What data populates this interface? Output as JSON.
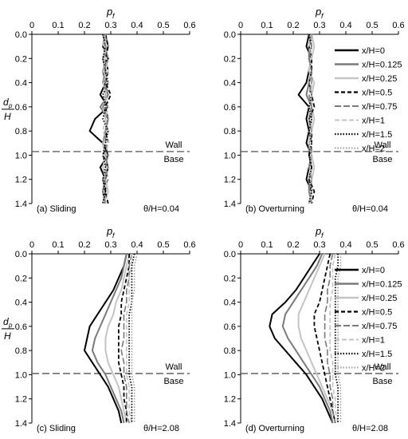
{
  "figure": {
    "y_axis_label": "d_p / H",
    "x_axis_label": "p_f"
  },
  "chart_data": [
    {
      "type": "line",
      "panel_label": "(a) Sliding",
      "theta_label": "θ/H=0.04",
      "xlabel": "p_f",
      "ylabel": "d_p/H",
      "xlim": [
        0,
        0.6
      ],
      "ylim": [
        0,
        1.4
      ],
      "y_inverted": true,
      "x_ticks": [
        0,
        0.1,
        0.2,
        0.3,
        0.4,
        0.5,
        0.6
      ],
      "y_ticks": [
        0.0,
        0.2,
        0.4,
        0.6,
        0.8,
        1.0,
        1.2,
        1.4
      ],
      "show_legend": false,
      "wall_line": {
        "y": 0.97,
        "above_label": "Wall",
        "below_label": "Base"
      },
      "depths": [
        0,
        0.1,
        0.2,
        0.3,
        0.4,
        0.5,
        0.6,
        0.7,
        0.8,
        0.9,
        1.0,
        1.1,
        1.2,
        1.3,
        1.4
      ],
      "series": [
        {
          "name": "x/H=0",
          "style": "solid-black",
          "values": [
            0.28,
            0.27,
            0.29,
            0.27,
            0.28,
            0.26,
            0.29,
            0.24,
            0.22,
            0.27,
            0.29,
            0.26,
            0.28,
            0.27,
            0.28
          ]
        },
        {
          "name": "x/H=0.125",
          "style": "solid-darkgray",
          "values": [
            0.28,
            0.29,
            0.27,
            0.28,
            0.27,
            0.29,
            0.26,
            0.29,
            0.28,
            0.27,
            0.28,
            0.29,
            0.27,
            0.28,
            0.27
          ]
        },
        {
          "name": "x/H=0.25",
          "style": "solid-lightgray",
          "values": [
            0.27,
            0.28,
            0.28,
            0.27,
            0.29,
            0.28,
            0.27,
            0.28,
            0.29,
            0.27,
            0.28,
            0.27,
            0.28,
            0.29,
            0.27
          ]
        },
        {
          "name": "x/H=0.5",
          "style": "dash-black",
          "values": [
            0.28,
            0.29,
            0.28,
            0.29,
            0.28,
            0.3,
            0.28,
            0.29,
            0.28,
            0.29,
            0.27,
            0.29,
            0.28,
            0.28,
            0.29
          ]
        },
        {
          "name": "x/H=0.75",
          "style": "dash-darkgray",
          "values": [
            0.27,
            0.28,
            0.29,
            0.28,
            0.28,
            0.29,
            0.27,
            0.29,
            0.28,
            0.28,
            0.29,
            0.28,
            0.29,
            0.27,
            0.28
          ]
        },
        {
          "name": "x/H=1",
          "style": "dash-lightgray",
          "values": [
            0.28,
            0.27,
            0.28,
            0.29,
            0.27,
            0.28,
            0.29,
            0.28,
            0.27,
            0.29,
            0.28,
            0.27,
            0.28,
            0.29,
            0.28
          ]
        },
        {
          "name": "x/H=1.5",
          "style": "dot-black",
          "values": [
            0.27,
            0.28,
            0.27,
            0.28,
            0.29,
            0.27,
            0.28,
            0.27,
            0.29,
            0.28,
            0.27,
            0.28,
            0.27,
            0.28,
            0.27
          ]
        },
        {
          "name": "x/H=2",
          "style": "dot-gray",
          "values": [
            0.28,
            0.28,
            0.29,
            0.27,
            0.28,
            0.28,
            0.28,
            0.29,
            0.28,
            0.27,
            0.28,
            0.29,
            0.28,
            0.27,
            0.28
          ]
        }
      ]
    },
    {
      "type": "line",
      "panel_label": "(b) Overturning",
      "theta_label": "θ/H=0.04",
      "xlabel": "p_f",
      "ylabel": "",
      "xlim": [
        0,
        0.6
      ],
      "ylim": [
        0,
        1.4
      ],
      "y_inverted": true,
      "x_ticks": [
        0,
        0.1,
        0.2,
        0.3,
        0.4,
        0.5,
        0.6
      ],
      "y_ticks": [
        0.0,
        0.2,
        0.4,
        0.6,
        0.8,
        1.0,
        1.2,
        1.4
      ],
      "show_legend": true,
      "wall_line": {
        "y": 0.97,
        "above_label": "Wall",
        "below_label": "Base"
      },
      "depths": [
        0,
        0.1,
        0.2,
        0.3,
        0.4,
        0.5,
        0.6,
        0.7,
        0.8,
        0.9,
        1.0,
        1.1,
        1.2,
        1.3,
        1.4
      ],
      "series": [
        {
          "name": "x/H=0",
          "style": "solid-black",
          "values": [
            0.26,
            0.25,
            0.27,
            0.26,
            0.25,
            0.22,
            0.26,
            0.25,
            0.26,
            0.25,
            0.27,
            0.26,
            0.25,
            0.27,
            0.26
          ]
        },
        {
          "name": "x/H=0.125",
          "style": "solid-darkgray",
          "values": [
            0.27,
            0.26,
            0.26,
            0.27,
            0.26,
            0.25,
            0.27,
            0.26,
            0.27,
            0.26,
            0.26,
            0.27,
            0.26,
            0.26,
            0.27
          ]
        },
        {
          "name": "x/H=0.25",
          "style": "solid-lightgray",
          "values": [
            0.27,
            0.28,
            0.27,
            0.26,
            0.28,
            0.27,
            0.27,
            0.28,
            0.27,
            0.26,
            0.27,
            0.28,
            0.27,
            0.27,
            0.26
          ]
        },
        {
          "name": "x/H=0.5",
          "style": "dash-black",
          "values": [
            0.27,
            0.26,
            0.27,
            0.27,
            0.26,
            0.27,
            0.28,
            0.26,
            0.27,
            0.27,
            0.26,
            0.27,
            0.26,
            0.28,
            0.27
          ]
        },
        {
          "name": "x/H=0.75",
          "style": "dash-darkgray",
          "values": [
            0.26,
            0.27,
            0.26,
            0.27,
            0.27,
            0.26,
            0.27,
            0.27,
            0.26,
            0.27,
            0.27,
            0.26,
            0.27,
            0.26,
            0.27
          ]
        },
        {
          "name": "x/H=1",
          "style": "dash-lightgray",
          "values": [
            0.27,
            0.26,
            0.27,
            0.26,
            0.27,
            0.27,
            0.26,
            0.27,
            0.27,
            0.26,
            0.27,
            0.27,
            0.26,
            0.27,
            0.26
          ]
        },
        {
          "name": "x/H=1.5",
          "style": "dot-black",
          "values": [
            0.26,
            0.27,
            0.26,
            0.27,
            0.26,
            0.27,
            0.26,
            0.27,
            0.26,
            0.27,
            0.26,
            0.27,
            0.26,
            0.27,
            0.26
          ]
        },
        {
          "name": "x/H=2",
          "style": "dot-gray",
          "values": [
            0.27,
            0.27,
            0.26,
            0.27,
            0.26,
            0.27,
            0.27,
            0.26,
            0.27,
            0.26,
            0.27,
            0.26,
            0.27,
            0.26,
            0.27
          ]
        }
      ]
    },
    {
      "type": "line",
      "panel_label": "(c) Sliding",
      "theta_label": "θ/H=2.08",
      "xlabel": "p_f",
      "ylabel": "d_p/H",
      "xlim": [
        0,
        0.6
      ],
      "ylim": [
        0,
        1.4
      ],
      "y_inverted": true,
      "x_ticks": [
        0,
        0.1,
        0.2,
        0.3,
        0.4,
        0.5,
        0.6
      ],
      "y_ticks": [
        0.0,
        0.2,
        0.4,
        0.6,
        0.8,
        1.0,
        1.2,
        1.4
      ],
      "show_legend": false,
      "wall_line": {
        "y": 0.99,
        "above_label": "Wall",
        "below_label": "Base"
      },
      "depths": [
        0,
        0.1,
        0.2,
        0.3,
        0.4,
        0.5,
        0.6,
        0.7,
        0.8,
        0.9,
        1.0,
        1.1,
        1.2,
        1.3,
        1.4
      ],
      "series": [
        {
          "name": "x/H=0",
          "style": "solid-black",
          "values": [
            0.36,
            0.35,
            0.33,
            0.31,
            0.28,
            0.25,
            0.22,
            0.21,
            0.2,
            0.23,
            0.26,
            0.29,
            0.31,
            0.33,
            0.34
          ]
        },
        {
          "name": "x/H=0.125",
          "style": "solid-darkgray",
          "values": [
            0.36,
            0.35,
            0.34,
            0.32,
            0.3,
            0.28,
            0.26,
            0.24,
            0.23,
            0.25,
            0.28,
            0.3,
            0.32,
            0.34,
            0.35
          ]
        },
        {
          "name": "x/H=0.25",
          "style": "solid-lightgray",
          "values": [
            0.37,
            0.36,
            0.35,
            0.34,
            0.32,
            0.31,
            0.29,
            0.28,
            0.28,
            0.29,
            0.31,
            0.33,
            0.34,
            0.35,
            0.36
          ]
        },
        {
          "name": "x/H=0.5",
          "style": "dash-black",
          "values": [
            0.37,
            0.37,
            0.36,
            0.35,
            0.34,
            0.34,
            0.33,
            0.33,
            0.33,
            0.33,
            0.34,
            0.35,
            0.35,
            0.36,
            0.36
          ]
        },
        {
          "name": "x/H=0.75",
          "style": "dash-darkgray",
          "values": [
            0.38,
            0.37,
            0.37,
            0.36,
            0.36,
            0.35,
            0.35,
            0.35,
            0.34,
            0.35,
            0.35,
            0.36,
            0.36,
            0.36,
            0.37
          ]
        },
        {
          "name": "x/H=1",
          "style": "dash-lightgray",
          "values": [
            0.38,
            0.38,
            0.37,
            0.37,
            0.37,
            0.36,
            0.36,
            0.36,
            0.36,
            0.36,
            0.36,
            0.37,
            0.37,
            0.37,
            0.38
          ]
        },
        {
          "name": "x/H=1.5",
          "style": "dot-black",
          "values": [
            0.39,
            0.38,
            0.38,
            0.38,
            0.38,
            0.37,
            0.37,
            0.37,
            0.37,
            0.37,
            0.37,
            0.38,
            0.38,
            0.38,
            0.38
          ]
        },
        {
          "name": "x/H=2",
          "style": "dot-gray",
          "values": [
            0.4,
            0.39,
            0.39,
            0.39,
            0.38,
            0.38,
            0.38,
            0.38,
            0.38,
            0.38,
            0.38,
            0.39,
            0.39,
            0.39,
            0.39
          ]
        }
      ]
    },
    {
      "type": "line",
      "panel_label": "(d) Overturning",
      "theta_label": "θ/H=2.08",
      "xlabel": "p_f",
      "ylabel": "",
      "xlim": [
        0,
        0.6
      ],
      "ylim": [
        0,
        1.4
      ],
      "y_inverted": true,
      "x_ticks": [
        0,
        0.1,
        0.2,
        0.3,
        0.4,
        0.5,
        0.6
      ],
      "y_ticks": [
        0.0,
        0.2,
        0.4,
        0.6,
        0.8,
        1.0,
        1.2,
        1.4
      ],
      "show_legend": true,
      "wall_line": {
        "y": 0.99,
        "above_label": "Wall",
        "below_label": "Base"
      },
      "depths": [
        0,
        0.1,
        0.2,
        0.3,
        0.4,
        0.5,
        0.6,
        0.7,
        0.8,
        0.9,
        1.0,
        1.1,
        1.2,
        1.3,
        1.4
      ],
      "series": [
        {
          "name": "x/H=0",
          "style": "solid-black",
          "values": [
            0.3,
            0.27,
            0.24,
            0.21,
            0.17,
            0.12,
            0.11,
            0.13,
            0.17,
            0.21,
            0.25,
            0.28,
            0.31,
            0.33,
            0.35
          ]
        },
        {
          "name": "x/H=0.125",
          "style": "solid-darkgray",
          "values": [
            0.31,
            0.29,
            0.26,
            0.23,
            0.2,
            0.17,
            0.16,
            0.18,
            0.21,
            0.24,
            0.27,
            0.3,
            0.32,
            0.34,
            0.35
          ]
        },
        {
          "name": "x/H=0.25",
          "style": "solid-lightgray",
          "values": [
            0.32,
            0.3,
            0.28,
            0.26,
            0.24,
            0.22,
            0.22,
            0.23,
            0.25,
            0.27,
            0.29,
            0.31,
            0.33,
            0.35,
            0.36
          ]
        },
        {
          "name": "x/H=0.5",
          "style": "dash-black",
          "values": [
            0.34,
            0.33,
            0.32,
            0.31,
            0.3,
            0.28,
            0.28,
            0.29,
            0.3,
            0.31,
            0.32,
            0.33,
            0.34,
            0.35,
            0.36
          ]
        },
        {
          "name": "x/H=0.75",
          "style": "dash-darkgray",
          "values": [
            0.35,
            0.34,
            0.34,
            0.33,
            0.33,
            0.32,
            0.32,
            0.32,
            0.33,
            0.33,
            0.34,
            0.34,
            0.35,
            0.35,
            0.36
          ]
        },
        {
          "name": "x/H=1",
          "style": "dash-lightgray",
          "values": [
            0.36,
            0.35,
            0.35,
            0.35,
            0.34,
            0.34,
            0.34,
            0.34,
            0.34,
            0.35,
            0.35,
            0.35,
            0.36,
            0.36,
            0.37
          ]
        },
        {
          "name": "x/H=1.5",
          "style": "dot-black",
          "values": [
            0.37,
            0.37,
            0.36,
            0.36,
            0.36,
            0.36,
            0.36,
            0.36,
            0.36,
            0.36,
            0.36,
            0.37,
            0.37,
            0.37,
            0.37
          ]
        },
        {
          "name": "x/H=2",
          "style": "dot-gray",
          "values": [
            0.38,
            0.38,
            0.37,
            0.37,
            0.37,
            0.37,
            0.37,
            0.37,
            0.37,
            0.37,
            0.37,
            0.38,
            0.38,
            0.38,
            0.38
          ]
        }
      ]
    }
  ]
}
